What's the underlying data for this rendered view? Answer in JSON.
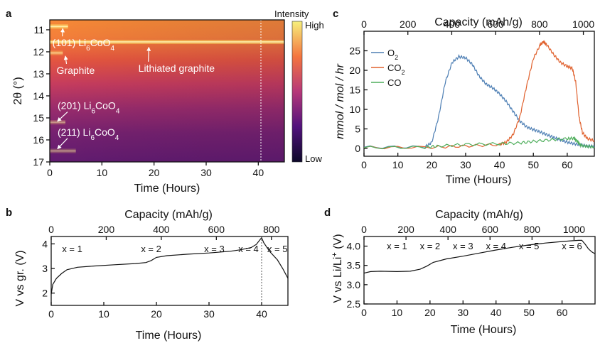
{
  "panels": {
    "a": "a",
    "b": "b",
    "c": "c",
    "d": "d"
  },
  "chart_data": [
    {
      "id": "a",
      "type": "heatmap",
      "xlabel": "Time (Hours)",
      "ylabel": "2θ (°)",
      "xlim": [
        0,
        45
      ],
      "ylim": [
        17,
        10.55
      ],
      "x_ticks": [
        0,
        10,
        20,
        30,
        40
      ],
      "y_ticks": [
        11,
        12,
        13,
        14,
        15,
        16,
        17
      ],
      "colorbar": {
        "title": "Intensity",
        "high": "High",
        "low": "Low"
      },
      "marker_line_x": 40.5,
      "bands": [
        {
          "y": 10.85,
          "start": 0,
          "end": 3.5,
          "strength": 0.85
        },
        {
          "y": 11.55,
          "start": 0,
          "end": 45,
          "strength": 0.8
        },
        {
          "y": 12.05,
          "start": 0,
          "end": 2.5,
          "strength": 0.55
        },
        {
          "y": 15.2,
          "start": 0,
          "end": 3,
          "strength": 0.4
        },
        {
          "y": 16.5,
          "start": 0,
          "end": 5,
          "strength": 0.4
        }
      ],
      "annotations": [
        {
          "text": "(101) Li",
          "sub": "6",
          "rest": "CoO",
          "sub2": "4",
          "x": 0.5,
          "y": 11.75,
          "arrow_to": [
            2.5,
            10.95
          ]
        },
        {
          "text": "Graphite",
          "x": 1.3,
          "y": 13.0,
          "arrow_to": [
            3.0,
            12.2
          ]
        },
        {
          "text": "Lithiated graphite",
          "x": 17,
          "y": 12.9,
          "arrow_to": [
            19,
            11.8
          ]
        },
        {
          "text": "(201) Li",
          "sub": "6",
          "rest": "CoO",
          "sub2": "4",
          "x": 1.5,
          "y": 14.6,
          "arrow_to": [
            1.5,
            15.15
          ]
        },
        {
          "text": "(211) Li",
          "sub": "6",
          "rest": "CoO",
          "sub2": "4",
          "x": 1.5,
          "y": 15.8,
          "arrow_to": [
            1.5,
            16.4
          ]
        }
      ]
    },
    {
      "id": "b",
      "type": "line",
      "xlabel": "Time (Hours)",
      "ylabel": "V vs gr. (V)",
      "top_label": "Capacity  (mAh/g)",
      "xlim": [
        0,
        45
      ],
      "ylim": [
        1.5,
        4.3
      ],
      "x_ticks": [
        0,
        10,
        20,
        30,
        40
      ],
      "y_ticks": [
        2,
        3,
        4
      ],
      "top_ticks": [
        0,
        200,
        400,
        600,
        800
      ],
      "top_max": 860,
      "marker_line_x": 40,
      "x": [
        0,
        0.3,
        1,
        2,
        3,
        5,
        8,
        12,
        16,
        18,
        19,
        20,
        22,
        26,
        30,
        34,
        36,
        38,
        39,
        39.8,
        40,
        40.4,
        41.5,
        43,
        44,
        45
      ],
      "y": [
        1.95,
        2.35,
        2.6,
        2.8,
        2.95,
        3.05,
        3.1,
        3.15,
        3.2,
        3.24,
        3.32,
        3.45,
        3.52,
        3.58,
        3.63,
        3.7,
        3.76,
        3.85,
        3.98,
        4.2,
        4.25,
        4.05,
        3.7,
        3.35,
        3.0,
        2.6
      ],
      "step_labels": [
        "x = 1",
        "x = 2",
        "x = 3",
        "x = 4",
        "x = 5"
      ],
      "step_x": [
        4,
        19,
        31,
        37.5,
        43
      ]
    },
    {
      "id": "c",
      "type": "line",
      "xlabel": "Time (Hours)",
      "ylabel": "mmol / mol / hr",
      "top_label": "Capacity  (mAh/g)",
      "xlim": [
        0,
        68
      ],
      "ylim": [
        -2,
        30
      ],
      "x_ticks": [
        0,
        10,
        20,
        30,
        40,
        50,
        60
      ],
      "y_ticks": [
        0,
        5,
        10,
        15,
        20,
        25
      ],
      "top_ticks": [
        0,
        200,
        400,
        600,
        800,
        1000
      ],
      "top_max": 1050,
      "legend_position": "top-left",
      "series": [
        {
          "name": "O",
          "sub": "2",
          "color": "#4e7fb4",
          "x": [
            0,
            18,
            20,
            22,
            24,
            26,
            28,
            30,
            32,
            34,
            36,
            38,
            40,
            42,
            44,
            46,
            48,
            50,
            52,
            54,
            56,
            58,
            60,
            62,
            64,
            66,
            68
          ],
          "y": [
            0.3,
            0.4,
            1.5,
            8,
            17,
            22,
            23.5,
            23.2,
            21.5,
            18.5,
            16.5,
            15.5,
            14,
            12,
            9.5,
            7,
            5.5,
            4.8,
            4.2,
            3.5,
            2.8,
            2.2,
            1.6,
            1.2,
            0.9,
            0.6,
            0.5
          ]
        },
        {
          "name": "CO",
          "sub": "2",
          "color": "#e0622f",
          "x": [
            0,
            20,
            30,
            40,
            42,
            44,
            46,
            48,
            50,
            52,
            53,
            54,
            56,
            58,
            60,
            61.5,
            62.5,
            63.5,
            64.5,
            66,
            68
          ],
          "y": [
            0.2,
            0.3,
            0.6,
            1.0,
            1.6,
            3.5,
            8,
            16,
            23,
            26.5,
            27.3,
            26.5,
            24,
            22,
            21,
            20.5,
            17,
            8,
            4,
            2.5,
            2.0
          ]
        },
        {
          "name": "CO",
          "sub": "",
          "color": "#4fae5c",
          "x": [
            0,
            18,
            22,
            30,
            40,
            46,
            50,
            55,
            60,
            62,
            63,
            64,
            66,
            68
          ],
          "y": [
            0.2,
            0.3,
            0.6,
            1.0,
            1.2,
            1.4,
            1.8,
            2.2,
            2.5,
            2.6,
            1.8,
            0.8,
            0.5,
            0.4
          ]
        }
      ]
    },
    {
      "id": "d",
      "type": "line",
      "xlabel": "Time (Hours)",
      "ylabel": "V vs Li/Li",
      "ylabel_sup": "+",
      "ylabel_unit": " (V)",
      "top_label": "Capacity  (mAh/g)",
      "xlim": [
        0,
        70
      ],
      "ylim": [
        2.5,
        4.25
      ],
      "x_ticks": [
        0,
        10,
        20,
        30,
        40,
        50,
        60
      ],
      "y_ticks": [
        2.5,
        3.0,
        3.5,
        4.0
      ],
      "top_ticks": [
        0,
        200,
        400,
        600,
        800,
        1000
      ],
      "top_max": 1100,
      "x": [
        0,
        2,
        5,
        10,
        14,
        17,
        19,
        21,
        25,
        30,
        35,
        40,
        45,
        50,
        55,
        60,
        63,
        65,
        66,
        67,
        68,
        69,
        70
      ],
      "y": [
        3.3,
        3.34,
        3.35,
        3.34,
        3.35,
        3.4,
        3.48,
        3.58,
        3.67,
        3.74,
        3.82,
        3.9,
        3.97,
        4.03,
        4.08,
        4.12,
        4.14,
        4.15,
        4.15,
        4.05,
        3.93,
        3.85,
        3.8
      ],
      "step_labels": [
        "x = 1",
        "x = 2",
        "x = 3",
        "x = 4",
        "x = 5",
        "x = 6"
      ],
      "step_x": [
        10,
        20,
        30,
        40,
        50,
        63
      ]
    }
  ]
}
